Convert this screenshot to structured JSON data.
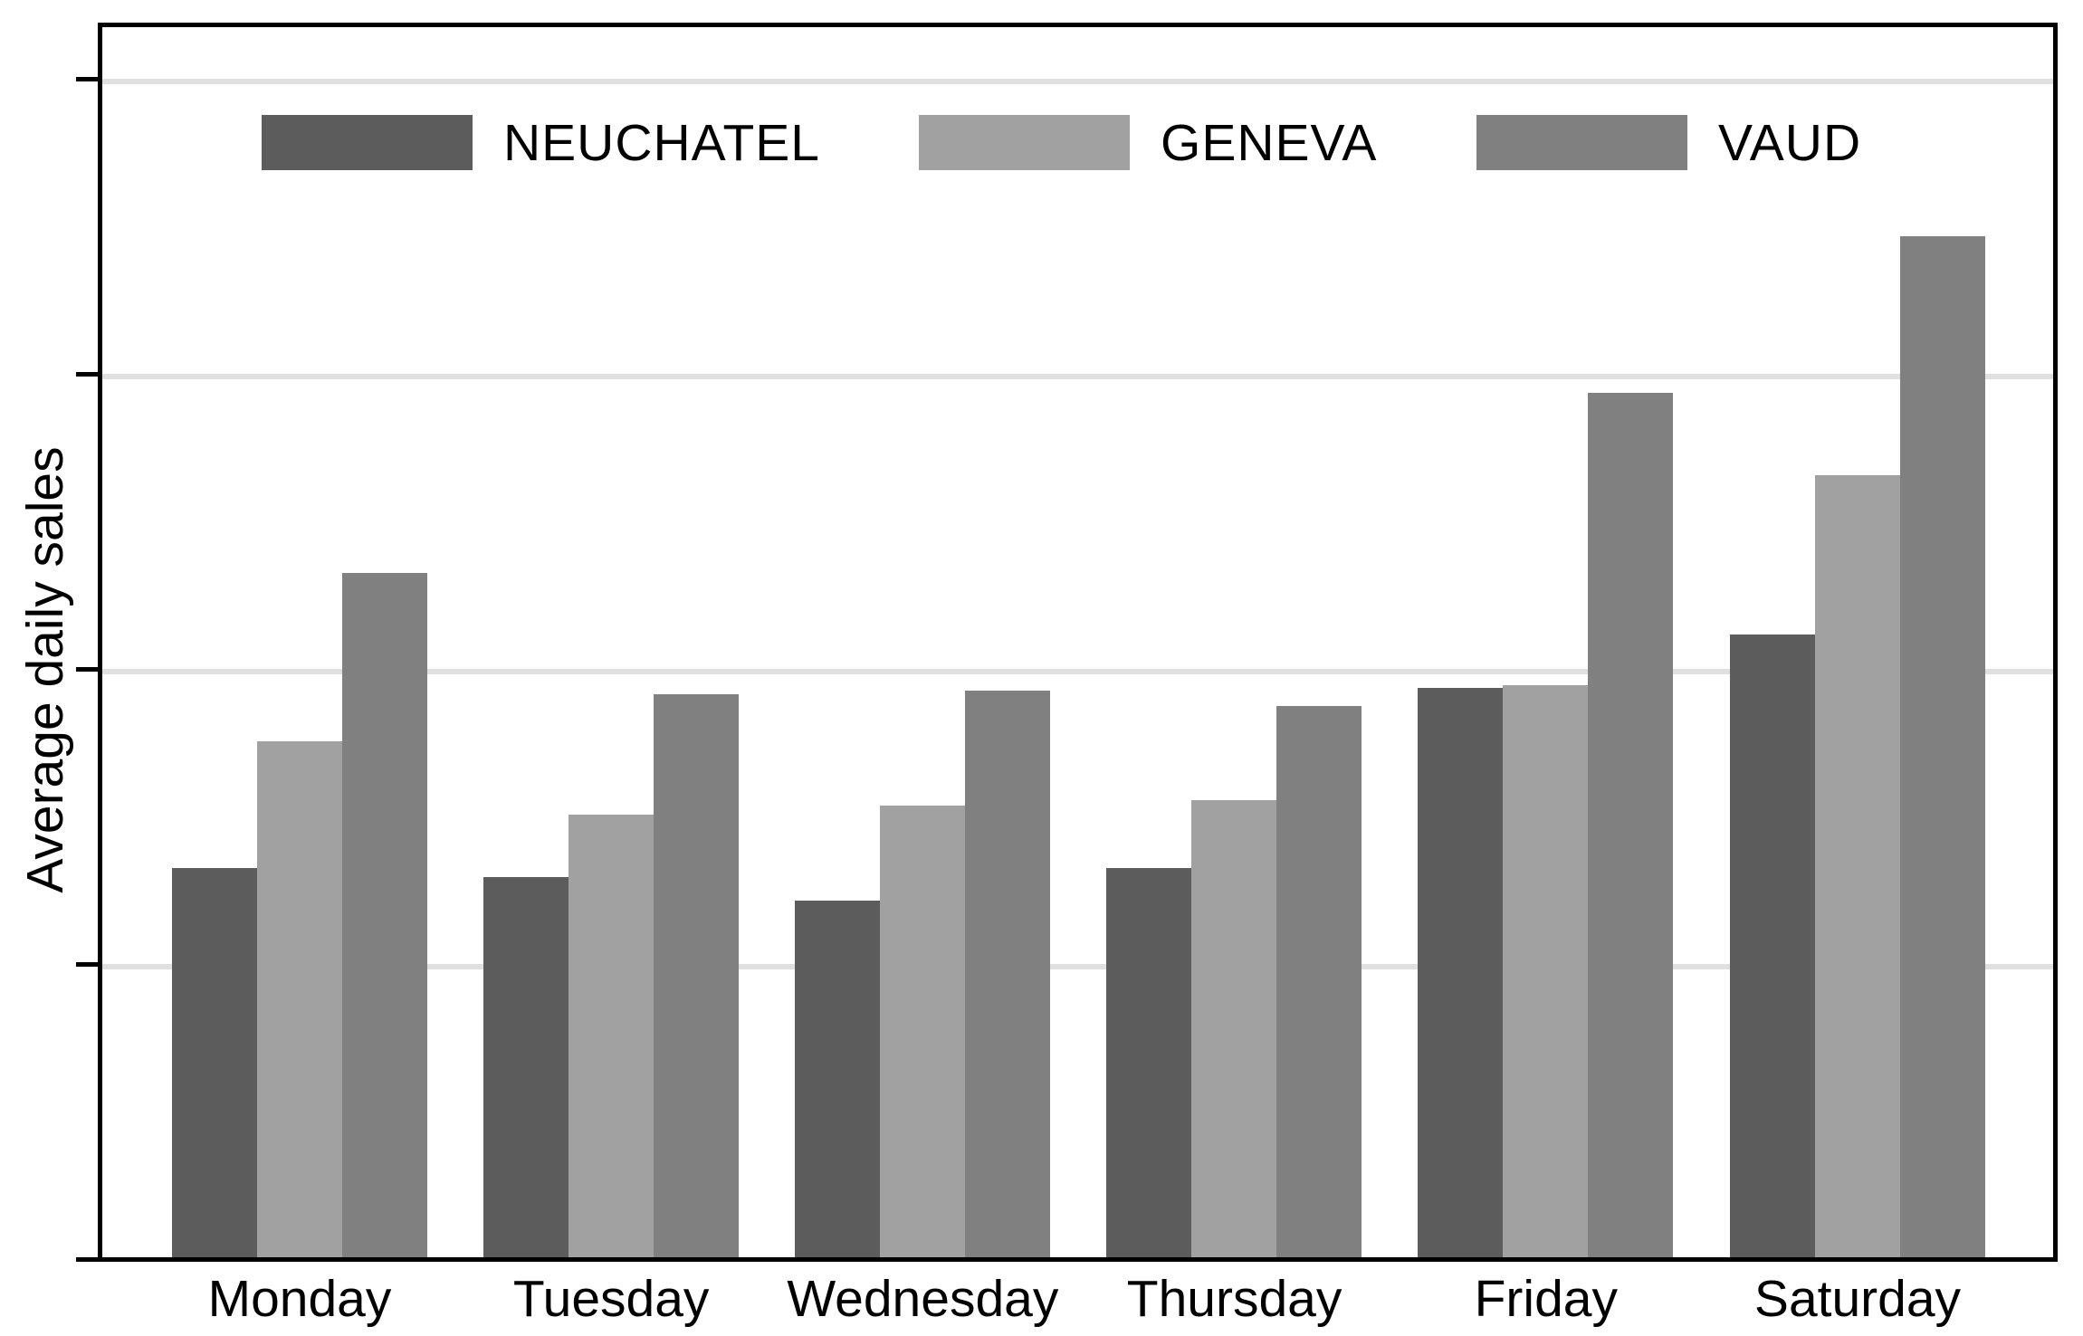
{
  "figure": {
    "background": "#ffffff",
    "axis_color": "#000000",
    "gridline_color": "#e0e0e0"
  },
  "chart_data": {
    "type": "bar",
    "title": "",
    "xlabel": "",
    "ylabel": "Average daily sales",
    "categories": [
      "Monday",
      "Tuesday",
      "Wednesday",
      "Thursday",
      "Friday",
      "Saturday"
    ],
    "series": [
      {
        "name": "NEUCHATEL",
        "color": "#5c5c5c",
        "values": [
          1.32,
          1.29,
          1.21,
          1.32,
          1.93,
          2.11
        ]
      },
      {
        "name": "GENEVA",
        "color": "#a1a1a1",
        "values": [
          1.75,
          1.5,
          1.53,
          1.55,
          1.94,
          2.65
        ]
      },
      {
        "name": "VAUD",
        "color": "#808080",
        "values": [
          2.32,
          1.91,
          1.92,
          1.87,
          2.93,
          3.46
        ]
      }
    ],
    "ylim": [
      0,
      4.19
    ],
    "y_axis": {
      "label": "Average daily sales",
      "tick_mark_values": [
        0,
        1,
        2,
        3,
        4
      ],
      "tick_labels_visible": false
    },
    "grid": "horizontal",
    "gridline_values": [
      1,
      2,
      3,
      4
    ],
    "legend_position": "top-inside",
    "legend_labels": [
      "NEUCHATEL",
      "GENEVA",
      "VAUD"
    ]
  }
}
